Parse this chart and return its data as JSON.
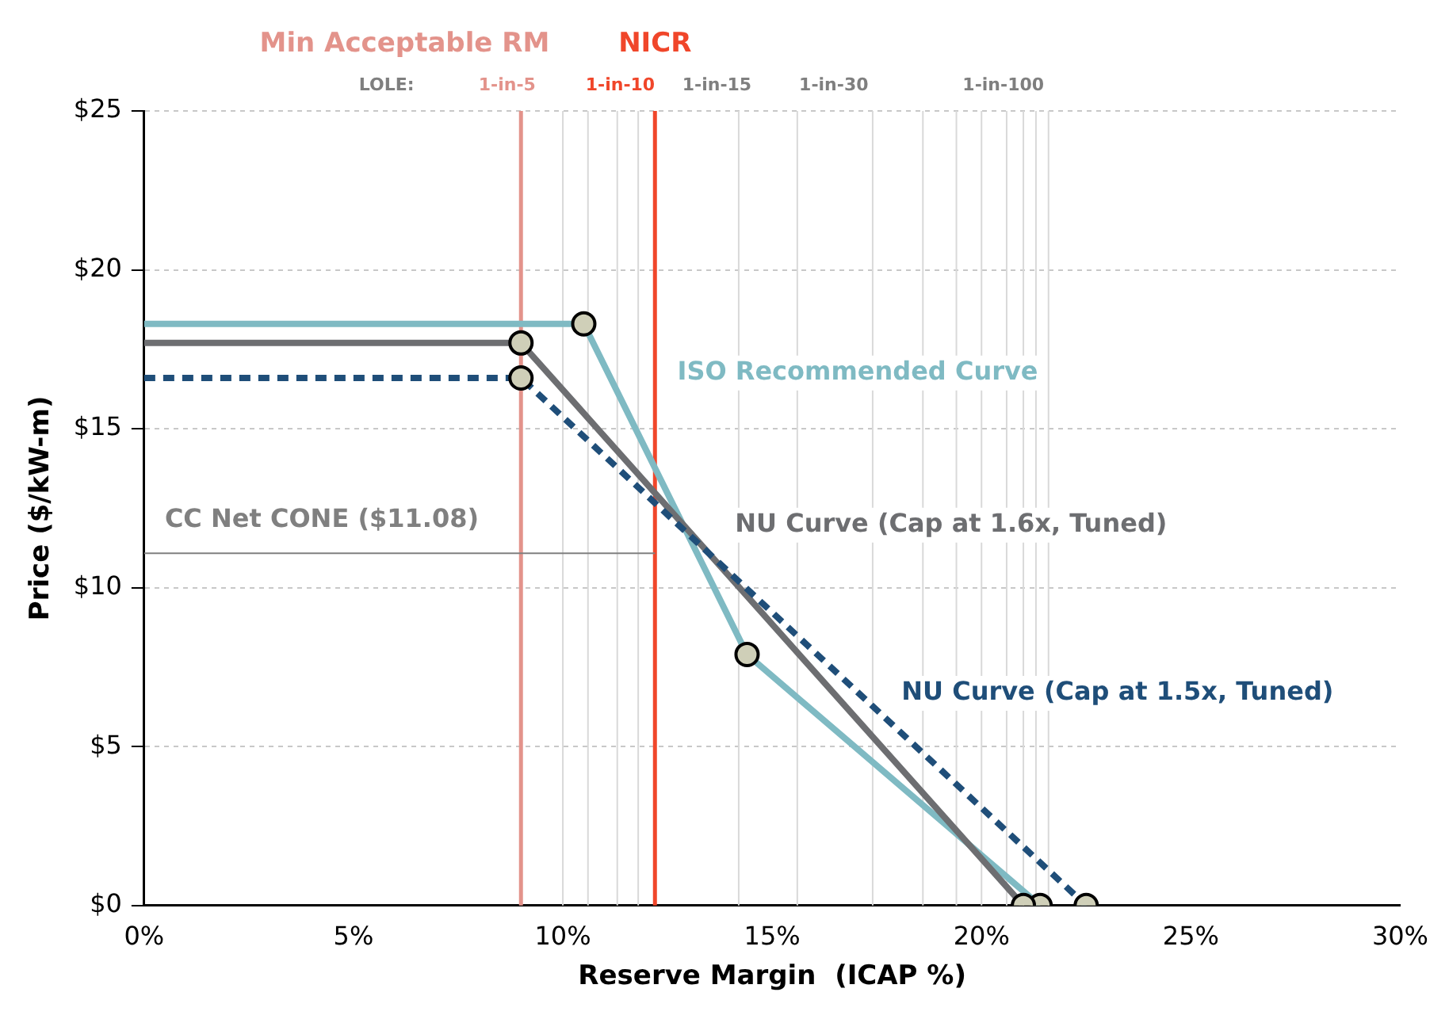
{
  "chart_data": {
    "type": "line",
    "xlabel": "Reserve Margin  (ICAP %)",
    "ylabel": "Price ($/kW-m)",
    "xlim": [
      0,
      30
    ],
    "xticks": [
      {
        "value": 0,
        "label": "0%"
      },
      {
        "value": 5,
        "label": "5%"
      },
      {
        "value": 10,
        "label": "10%"
      },
      {
        "value": 15,
        "label": "15%"
      },
      {
        "value": 20,
        "label": "20%"
      },
      {
        "value": 25,
        "label": "25%"
      },
      {
        "value": 30,
        "label": "30%"
      }
    ],
    "ylim": [
      0,
      25
    ],
    "yticks": [
      {
        "value": 0,
        "label": "$0"
      },
      {
        "value": 5,
        "label": "$5"
      },
      {
        "value": 10,
        "label": "$10"
      },
      {
        "value": 15,
        "label": "$15"
      },
      {
        "value": 20,
        "label": "$20"
      },
      {
        "value": 25,
        "label": "$25"
      }
    ],
    "grid": "y",
    "legend": false,
    "series": [
      {
        "name": "ISO Recommended Curve",
        "color": "#7fbac3",
        "x": [
          0,
          10.5,
          14.4,
          21.4
        ],
        "values": [
          18.3,
          18.3,
          7.9,
          0
        ],
        "marker": "circle",
        "line_style": "solid"
      },
      {
        "name": "NU Curve (Cap at 1.6x, Tuned)",
        "color": "#6d6e71",
        "x": [
          0,
          9.0,
          21.0
        ],
        "values": [
          17.7,
          17.7,
          0
        ],
        "marker": "circle",
        "line_style": "solid"
      },
      {
        "name": "NU Curve (Cap at 1.5x, Tuned)",
        "color": "#1f4e79",
        "x": [
          0,
          9.0,
          22.5
        ],
        "values": [
          16.6,
          16.6,
          0
        ],
        "marker": "circle",
        "line_style": "dashed"
      },
      {
        "name": "CC Net CONE ($11.08)",
        "color": "#808080",
        "x": [
          0,
          12.2
        ],
        "values": [
          11.08,
          11.08
        ],
        "marker": "none",
        "line_style": "solid"
      }
    ],
    "ref_lines": [
      {
        "axis": "x",
        "value": 10.0,
        "color": "#d9d9d9"
      },
      {
        "axis": "x",
        "value": 10.6,
        "color": "#d9d9d9"
      },
      {
        "axis": "x",
        "value": 11.3,
        "color": "#d9d9d9"
      },
      {
        "axis": "x",
        "value": 11.8,
        "color": "#d9d9d9"
      },
      {
        "axis": "x",
        "value": 14.2,
        "color": "#d9d9d9"
      },
      {
        "axis": "x",
        "value": 15.6,
        "color": "#d9d9d9"
      },
      {
        "axis": "x",
        "value": 17.4,
        "color": "#d9d9d9"
      },
      {
        "axis": "x",
        "value": 18.6,
        "color": "#d9d9d9"
      },
      {
        "axis": "x",
        "value": 19.4,
        "color": "#d9d9d9"
      },
      {
        "axis": "x",
        "value": 20.0,
        "color": "#d9d9d9"
      },
      {
        "axis": "x",
        "value": 20.6,
        "color": "#d9d9d9"
      },
      {
        "axis": "x",
        "value": 21.0,
        "color": "#d9d9d9"
      },
      {
        "axis": "x",
        "value": 21.3,
        "color": "#d9d9d9"
      },
      {
        "axis": "x",
        "value": 21.6,
        "color": "#d9d9d9"
      },
      {
        "axis": "x",
        "value": 9.0,
        "label": "Min Acceptable RM",
        "color": "#e3938b"
      },
      {
        "axis": "x",
        "value": 12.2,
        "label": "NICR",
        "color": "#f0462a"
      }
    ],
    "annotations": [
      "LOLE:",
      "1-in-5",
      "1-in-10",
      "1-in-15",
      "1-in-30",
      "1-in-100"
    ]
  }
}
